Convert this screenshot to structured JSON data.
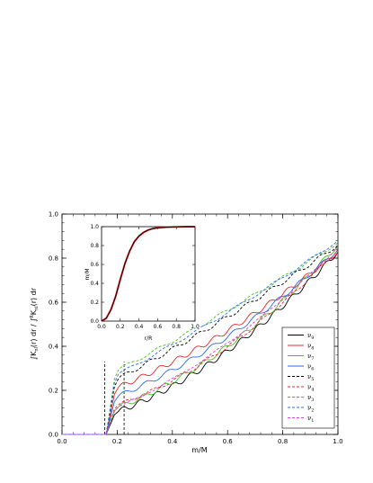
{
  "chart_data": [
    {
      "type": "line",
      "xlabel": "m/M",
      "ylabel": "∫K_nl(r) dr / ∫^R K_nl(r) dr",
      "ylabel_parts": {
        "part1": "∫K",
        "sub1": "nl",
        "part2": "(r) dr / ∫",
        "sup": "R",
        "part3": "K",
        "sub2": "nl",
        "part4": "(r) dr"
      },
      "xlim": [
        0.0,
        1.0
      ],
      "ylim": [
        0.0,
        1.0
      ],
      "xticks": [
        "0.0",
        "0.2",
        "0.4",
        "0.6",
        "0.8",
        "1.0"
      ],
      "yticks": [
        "0.0",
        "0.2",
        "0.4",
        "0.6",
        "0.8",
        "1.0"
      ],
      "vlines": [
        0.155,
        0.225
      ],
      "legend_position": "bottom-right",
      "series": [
        {
          "name": "ν9",
          "label_base": "ν",
          "label_sub": "9",
          "color": "#000000",
          "dash": "solid",
          "jump_y": 0.105,
          "mid": 0.36,
          "ripple": 0.012,
          "cycles": 13,
          "end": 0.83
        },
        {
          "name": "ν8",
          "label_base": "ν",
          "label_sub": "8",
          "color": "#e8262a",
          "dash": "solid",
          "jump_y": 0.215,
          "mid": 0.46,
          "ripple": 0.011,
          "cycles": 12,
          "end": 0.83
        },
        {
          "name": "ν7",
          "label_base": "ν",
          "label_sub": "7",
          "color": "#46c021",
          "dash": "solid",
          "jump_y": 0.125,
          "mid": 0.38,
          "ripple": 0.011,
          "cycles": 11,
          "end": 0.86
        },
        {
          "name": "ν6",
          "label_base": "ν",
          "label_sub": "6",
          "color": "#2a6de0",
          "dash": "solid",
          "jump_y": 0.175,
          "mid": 0.43,
          "ripple": 0.01,
          "cycles": 10,
          "end": 0.84
        },
        {
          "name": "ν5",
          "label_base": "ν",
          "label_sub": "5",
          "color": "#000000",
          "dash": "dashed",
          "jump_y": 0.255,
          "mid": 0.53,
          "ripple": 0.009,
          "cycles": 9,
          "end": 0.86
        },
        {
          "name": "ν4",
          "label_base": "ν",
          "label_sub": "4",
          "color": "#e8262a",
          "dash": "dashed",
          "jump_y": 0.135,
          "mid": 0.38,
          "ripple": 0.008,
          "cycles": 8,
          "end": 0.84
        },
        {
          "name": "ν3",
          "label_base": "ν",
          "label_sub": "3",
          "color": "#46c021",
          "dash": "dashed",
          "jump_y": 0.295,
          "mid": 0.56,
          "ripple": 0.007,
          "cycles": 7,
          "end": 0.87
        },
        {
          "name": "ν2",
          "label_base": "ν",
          "label_sub": "2",
          "color": "#2a6de0",
          "dash": "dashed",
          "jump_y": 0.275,
          "mid": 0.55,
          "ripple": 0.006,
          "cycles": 6,
          "end": 0.88
        },
        {
          "name": "ν1",
          "label_base": "ν",
          "label_sub": "1",
          "color": "#e040e0",
          "dash": "dashed",
          "jump_y": 0.125,
          "mid": 0.4,
          "ripple": 0.004,
          "cycles": 5,
          "end": 0.85
        }
      ]
    },
    {
      "type": "line",
      "inset": true,
      "xlabel": "r/R",
      "ylabel": "m/M",
      "xlim": [
        0.0,
        1.0
      ],
      "ylim": [
        0.0,
        1.0
      ],
      "xticks": [
        "0.0",
        "0.2",
        "0.4",
        "0.6",
        "0.8",
        "1.0"
      ],
      "yticks": [
        "0.0",
        "0.2",
        "0.4",
        "0.6",
        "0.8",
        "1.0"
      ],
      "series": [
        {
          "color_outer": "#e8262a",
          "color_inner": "#000000",
          "x": [
            0.0,
            0.05,
            0.1,
            0.15,
            0.2,
            0.25,
            0.3,
            0.35,
            0.4,
            0.45,
            0.5,
            0.55,
            0.6,
            0.7,
            0.8,
            0.9,
            1.0
          ],
          "y": [
            0.0,
            0.03,
            0.12,
            0.26,
            0.44,
            0.61,
            0.74,
            0.84,
            0.9,
            0.94,
            0.965,
            0.98,
            0.988,
            0.995,
            0.998,
            1.0,
            1.0
          ]
        }
      ]
    }
  ]
}
